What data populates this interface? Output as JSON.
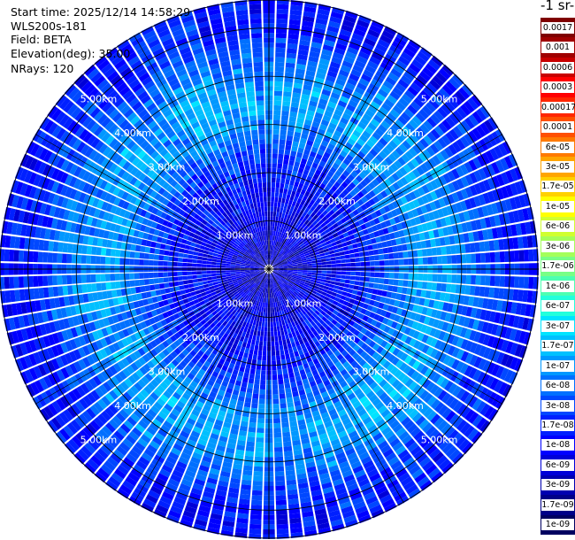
{
  "header": {
    "start_time": "Start time: 2025/12/14 14:58:29",
    "instrument": "WLS200s-181",
    "field": "Field: BETA",
    "elevation": "Elevation(deg): 35.00",
    "nrays": "NRays: 120"
  },
  "colorbar": {
    "title": "-1 sr-",
    "labels": [
      "0.0017",
      "0.001",
      "0.0006",
      "0.0003",
      "0.00017",
      "0.0001",
      "6e-05",
      "3e-05",
      "1.7e-05",
      "1e-05",
      "6e-06",
      "3e-06",
      "1.7e-06",
      "1e-06",
      "6e-07",
      "3e-07",
      "1.7e-07",
      "1e-07",
      "6e-08",
      "3e-08",
      "1.7e-08",
      "1e-08",
      "6e-09",
      "3e-09",
      "1.7e-09",
      "1e-09"
    ],
    "colors": [
      "#7f0000",
      "#a00000",
      "#c80000",
      "#ff0000",
      "#ff2600",
      "#ff5000",
      "#ff7a00",
      "#ffa500",
      "#ffd100",
      "#ffff00",
      "#d0ff30",
      "#a4ff5a",
      "#78ff86",
      "#4cffb2",
      "#22ffdc",
      "#00e4ff",
      "#00c0ff",
      "#0098ff",
      "#0070ff",
      "#0048ff",
      "#0020ff",
      "#0000ff",
      "#0000d8",
      "#0000b0",
      "#000088",
      "#000060"
    ]
  },
  "chart_data": {
    "type": "heatmap",
    "projection": "polar-ppi",
    "field": "BETA",
    "elevation_deg": 35.0,
    "n_rays": 120,
    "range_rings_km": [
      1,
      2,
      3,
      4,
      5
    ],
    "range_ring_labels": [
      "1.00km",
      "2.00km",
      "3.00km",
      "4.00km",
      "5.00km"
    ],
    "max_range_km": 5.6,
    "azimuth_grid_deg": [
      0,
      30,
      60,
      90,
      120,
      150,
      180,
      210,
      240,
      270,
      300,
      330
    ],
    "radial_profile": {
      "range_km": [
        0.2,
        0.6,
        1.0,
        1.4,
        1.8,
        2.2,
        2.6,
        3.0,
        3.4,
        3.8,
        4.2,
        4.6,
        5.0,
        5.4
      ],
      "log10_beta": [
        -8.2,
        -8.1,
        -8.0,
        -7.9,
        -7.8,
        -7.6,
        -7.3,
        -7.0,
        -6.9,
        -7.0,
        -7.2,
        -7.5,
        -7.7,
        -7.8
      ]
    },
    "colorbar_ticks": [
      "0.0017",
      "0.001",
      "0.0006",
      "0.0003",
      "0.00017",
      "0.0001",
      "6e-05",
      "3e-05",
      "1.7e-05",
      "1e-05",
      "6e-06",
      "3e-06",
      "1.7e-06",
      "1e-06",
      "6e-07",
      "3e-07",
      "1.7e-07",
      "1e-07",
      "6e-08",
      "3e-08",
      "1.7e-08",
      "1e-08",
      "6e-09",
      "3e-09",
      "1.7e-09",
      "1e-09"
    ],
    "grid": true
  }
}
